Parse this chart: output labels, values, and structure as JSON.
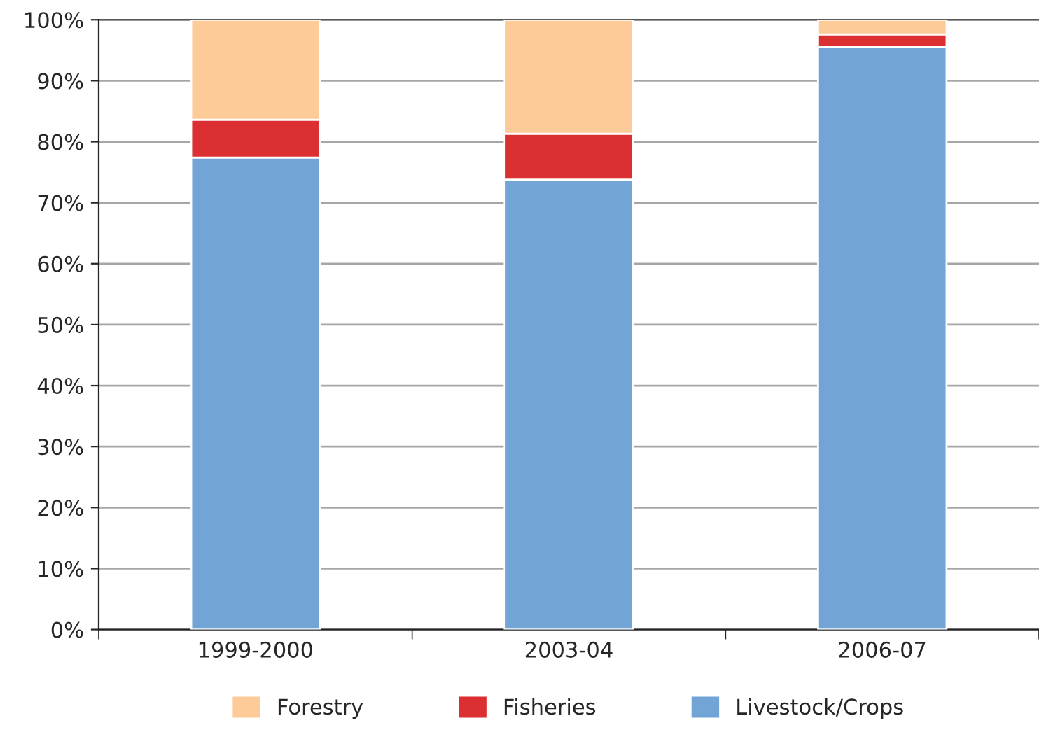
{
  "chart_data": {
    "type": "bar",
    "stacked": true,
    "categories": [
      "1999-2000",
      "2003-04",
      "2006-07"
    ],
    "series": [
      {
        "name": "Livestock/Crops",
        "color": "#72a4d6",
        "values": [
          77.4,
          73.8,
          95.5
        ]
      },
      {
        "name": "Fisheries",
        "color": "#db2f31",
        "values": [
          6.2,
          7.5,
          2.1
        ]
      },
      {
        "name": "Forestry",
        "color": "#fdcb98",
        "values": [
          16.4,
          18.7,
          2.4
        ]
      }
    ],
    "ylim": [
      0,
      100
    ],
    "yticks": [
      {
        "value": 0,
        "label": "0%"
      },
      {
        "value": 10,
        "label": "10%"
      },
      {
        "value": 20,
        "label": "20%"
      },
      {
        "value": 30,
        "label": "30%"
      },
      {
        "value": 40,
        "label": "40%"
      },
      {
        "value": 50,
        "label": "50%"
      },
      {
        "value": 60,
        "label": "60%"
      },
      {
        "value": 70,
        "label": "70%"
      },
      {
        "value": 80,
        "label": "80%"
      },
      {
        "value": 90,
        "label": "90%"
      },
      {
        "value": 100,
        "label": "100%"
      }
    ],
    "grid": "y",
    "legend": "bottom"
  }
}
